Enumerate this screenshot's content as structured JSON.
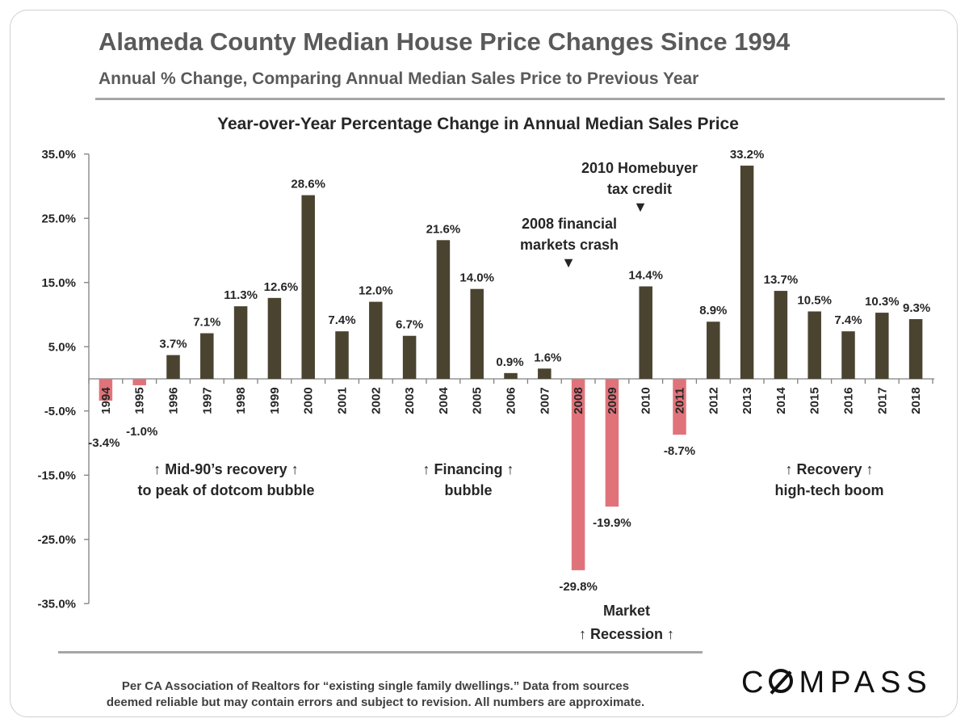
{
  "header": {
    "title": "Alameda County Median House Price Changes Since 1994",
    "subtitle": "Annual % Change, Comparing Annual Median Sales Price to Previous Year"
  },
  "chart_data": {
    "type": "bar",
    "title": "Year-over-Year Percentage Change in Annual Median Sales Price",
    "categories": [
      "1994",
      "1995",
      "1996",
      "1997",
      "1998",
      "1999",
      "2000",
      "2001",
      "2002",
      "2003",
      "2004",
      "2005",
      "2006",
      "2007",
      "2008",
      "2009",
      "2010",
      "2011",
      "2012",
      "2013",
      "2014",
      "2015",
      "2016",
      "2017",
      "2018"
    ],
    "values": [
      -3.4,
      -1.0,
      3.7,
      7.1,
      11.3,
      12.6,
      28.6,
      7.4,
      12.0,
      6.7,
      21.6,
      14.0,
      0.9,
      1.6,
      -29.8,
      -19.9,
      14.4,
      -8.7,
      8.9,
      33.2,
      13.7,
      10.5,
      7.4,
      10.3,
      9.3
    ],
    "value_labels": [
      "-3.4%",
      "-1.0%",
      "3.7%",
      "7.1%",
      "11.3%",
      "12.6%",
      "28.6%",
      "7.4%",
      "12.0%",
      "6.7%",
      "21.6%",
      "14.0%",
      "0.9%",
      "1.6%",
      "-29.8%",
      "-19.9%",
      "14.4%",
      "-8.7%",
      "8.9%",
      "33.2%",
      "13.7%",
      "10.5%",
      "7.4%",
      "10.3%",
      "9.3%"
    ],
    "ylim": [
      -35,
      35
    ],
    "yticks": [
      "35.0%",
      "25.0%",
      "15.0%",
      "5.0%",
      "-5.0%",
      "-15.0%",
      "-25.0%",
      "-35.0%"
    ],
    "ytick_values": [
      35,
      25,
      15,
      5,
      -5,
      -15,
      -25,
      -35
    ],
    "colors": {
      "positive": "#4a4330",
      "negative": "#e0737a",
      "axis": "#808080"
    },
    "grid": false,
    "annotations": [
      {
        "lines": [
          "↑ Mid-90’s  recovery ↑",
          "to peak  of dotcom  bubble"
        ]
      },
      {
        "lines": [
          "↑ Financing ↑",
          "bubble"
        ]
      },
      {
        "lines": [
          "2008 financial",
          "markets  crash"
        ],
        "marker": "▼"
      },
      {
        "lines": [
          "2010  Homebuyer",
          "tax credit"
        ],
        "marker": "▼"
      },
      {
        "lines": [
          "Market",
          "↑  Recession  ↑"
        ]
      },
      {
        "lines": [
          "↑      Recovery      ↑",
          "high-tech boom"
        ]
      }
    ]
  },
  "footer": {
    "source_line1": "Per CA Association  of Realtors for “existing single family dwellings.” Data from sources",
    "source_line2": "deemed reliable but may contain errors and subject to revision. All numbers are approximate.",
    "logo_rest": "MPASS",
    "logo_first": "C"
  }
}
